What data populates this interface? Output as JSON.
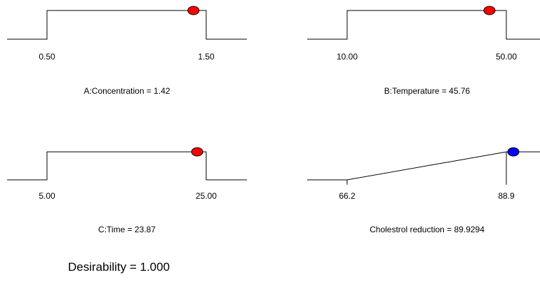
{
  "chart_data": [
    {
      "type": "ramp",
      "shape": "step",
      "factor": "A:Concentration",
      "caption": "A:Concentration = 1.42",
      "low_label": "0.50",
      "high_label": "1.50",
      "low": 0.5,
      "high": 1.5,
      "value": 1.42,
      "marker_color": "#ff0000"
    },
    {
      "type": "ramp",
      "shape": "step",
      "factor": "B:Temperature",
      "caption": "B:Temperature = 45.76",
      "low_label": "10.00",
      "high_label": "50.00",
      "low": 10.0,
      "high": 50.0,
      "value": 45.76,
      "marker_color": "#ff0000"
    },
    {
      "type": "ramp",
      "shape": "step",
      "factor": "C:Time",
      "caption": "C:Time = 23.87",
      "low_label": "5.00",
      "high_label": "25.00",
      "low": 5.0,
      "high": 25.0,
      "value": 23.87,
      "marker_color": "#ff0000"
    },
    {
      "type": "ramp",
      "shape": "maximize",
      "factor": "Cholestrol reduction",
      "caption": "Cholestrol reduction = 89.9294",
      "low_label": "66.2",
      "high_label": "88.9",
      "low": 66.2,
      "high": 88.9,
      "value": 89.9294,
      "marker_color": "#0000ff"
    }
  ],
  "desirability_label": "Desirability = 1.000"
}
